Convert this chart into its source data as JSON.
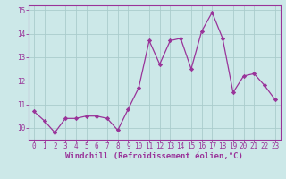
{
  "x": [
    0,
    1,
    2,
    3,
    4,
    5,
    6,
    7,
    8,
    9,
    10,
    11,
    12,
    13,
    14,
    15,
    16,
    17,
    18,
    19,
    20,
    21,
    22,
    23
  ],
  "y": [
    10.7,
    10.3,
    9.8,
    10.4,
    10.4,
    10.5,
    10.5,
    10.4,
    9.9,
    10.8,
    11.7,
    13.7,
    12.7,
    13.7,
    13.8,
    12.5,
    14.1,
    14.9,
    13.8,
    11.5,
    12.2,
    12.3,
    11.8,
    11.2
  ],
  "line_color": "#993399",
  "marker_color": "#993399",
  "bg_color": "#cce8e8",
  "grid_color": "#aacccc",
  "xlabel": "Windchill (Refroidissement éolien,°C)",
  "xlim": [
    -0.5,
    23.5
  ],
  "ylim": [
    9.5,
    15.2
  ],
  "yticks": [
    10,
    11,
    12,
    13,
    14,
    15
  ],
  "xticks": [
    0,
    1,
    2,
    3,
    4,
    5,
    6,
    7,
    8,
    9,
    10,
    11,
    12,
    13,
    14,
    15,
    16,
    17,
    18,
    19,
    20,
    21,
    22,
    23
  ],
  "font_color": "#993399",
  "axis_color": "#993399",
  "tick_fontsize": 5.5,
  "xlabel_fontsize": 6.5,
  "linewidth": 0.9,
  "markersize": 2.2
}
